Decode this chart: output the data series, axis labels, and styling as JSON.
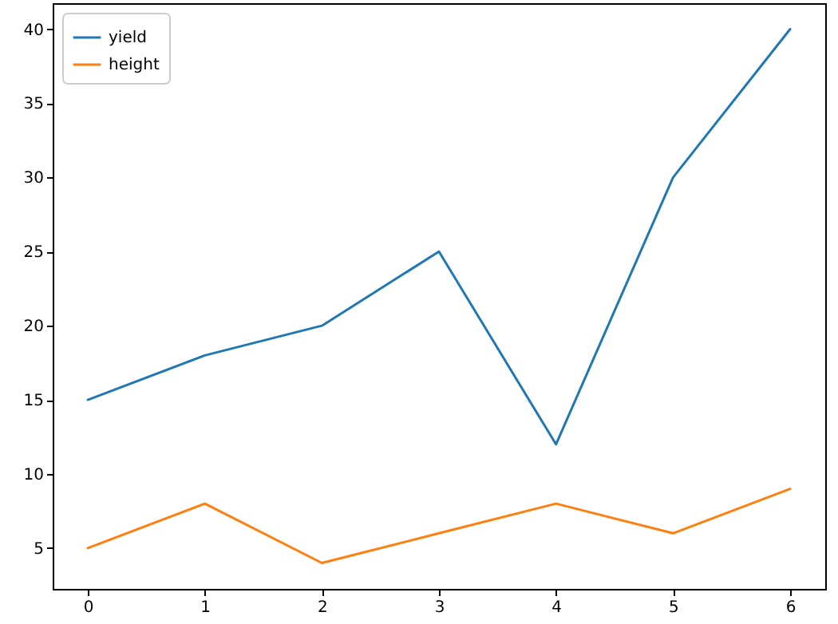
{
  "chart_data": {
    "type": "line",
    "x": [
      0,
      1,
      2,
      3,
      4,
      5,
      6
    ],
    "series": [
      {
        "name": "yield",
        "color": "#1f77b4",
        "values": [
          15,
          18,
          20,
          25,
          12,
          30,
          40
        ]
      },
      {
        "name": "height",
        "color": "#ff7f0e",
        "values": [
          5,
          8,
          4,
          6,
          8,
          6,
          9
        ]
      }
    ],
    "xlim": [
      -0.3,
      6.3
    ],
    "ylim": [
      2.25,
      41.75
    ],
    "xticks": [
      0,
      1,
      2,
      3,
      4,
      5,
      6
    ],
    "yticks": [
      5,
      10,
      15,
      20,
      25,
      30,
      35,
      40
    ],
    "legend": "top left",
    "grid": false,
    "marker": "none",
    "line_style": "solid"
  }
}
